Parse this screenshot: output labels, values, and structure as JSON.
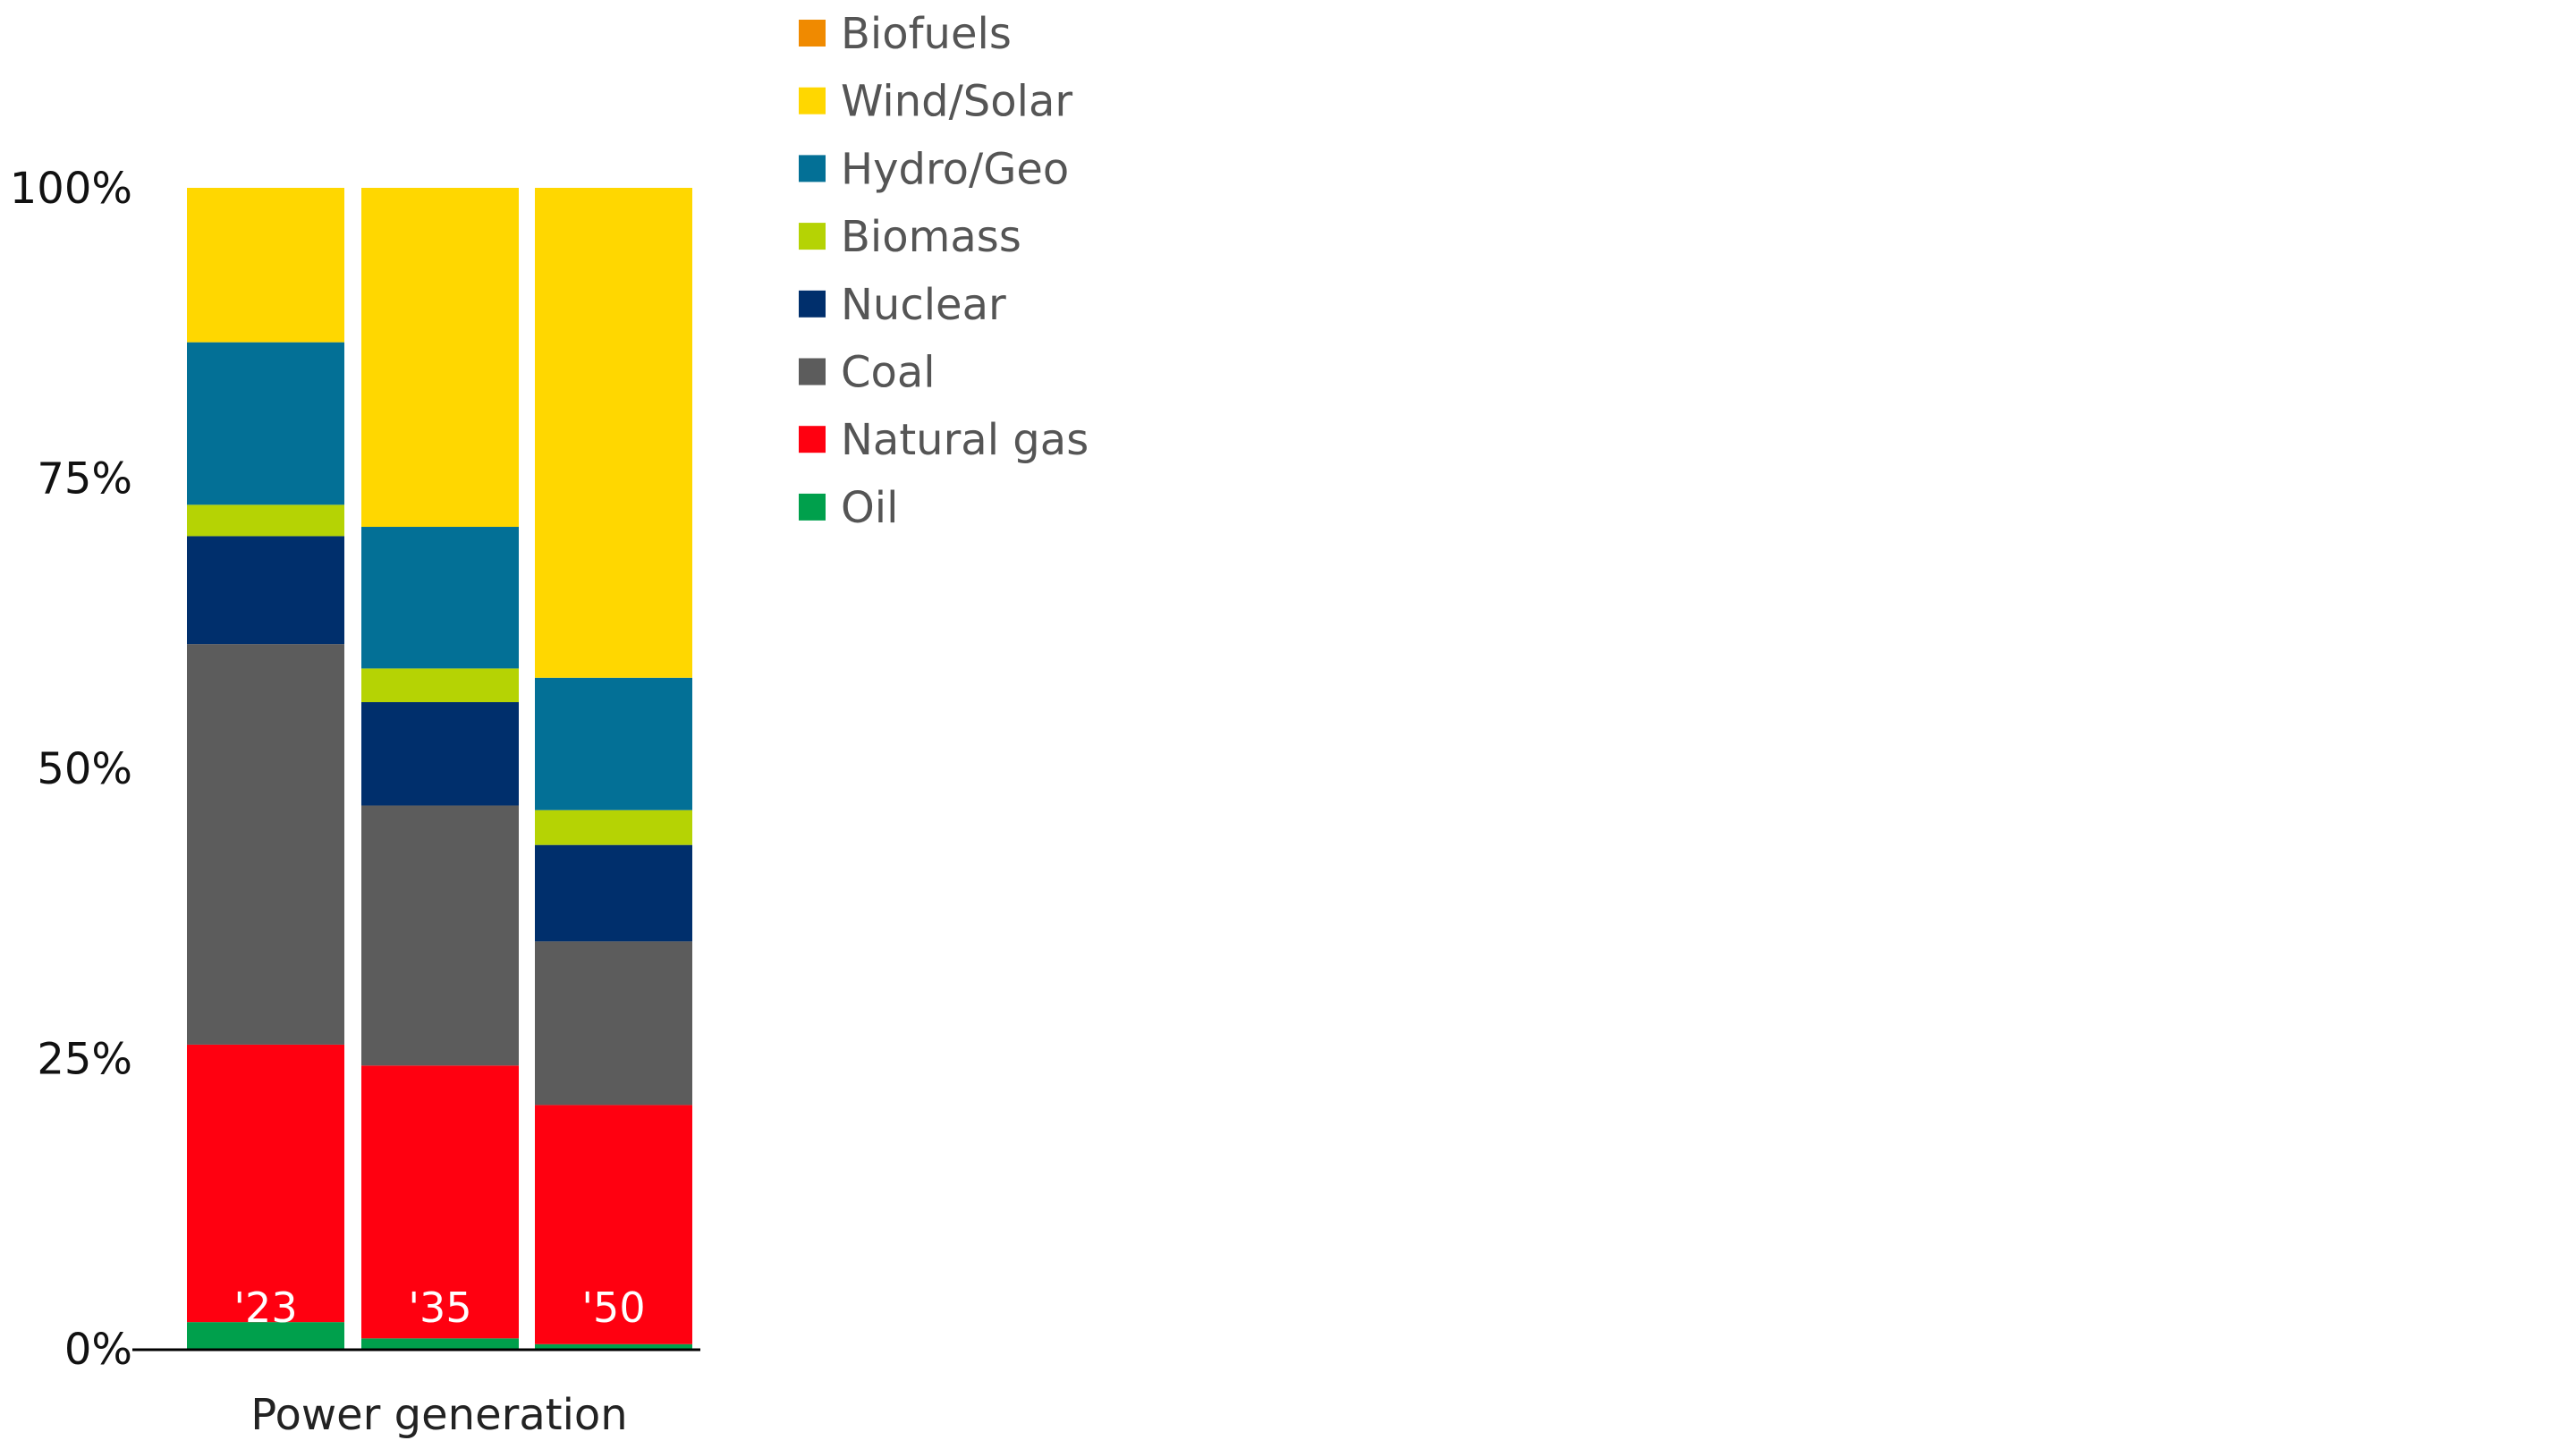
{
  "chart_data": {
    "type": "bar",
    "stacked": true,
    "normalized": true,
    "xlabel": "Power generation",
    "categories": [
      "'23",
      "'35",
      "'50"
    ],
    "yticks": [
      "0%",
      "25%",
      "50%",
      "75%",
      "100%"
    ],
    "ylim": [
      0,
      100
    ],
    "grid": false,
    "legend_placement": "top-right",
    "series": [
      {
        "name": "Oil",
        "color": "#00a04c",
        "values": [
          2.3,
          0.9,
          0.4
        ]
      },
      {
        "name": "Natural gas",
        "color": "#ff0010",
        "values": [
          23.9,
          23.5,
          20.6
        ]
      },
      {
        "name": "Coal",
        "color": "#5c5c5c",
        "values": [
          34.5,
          22.4,
          14.1
        ]
      },
      {
        "name": "Nuclear",
        "color": "#002f6c",
        "values": [
          9.3,
          8.9,
          8.3
        ]
      },
      {
        "name": "Biomass",
        "color": "#b5d304",
        "values": [
          2.7,
          2.9,
          3.0
        ]
      },
      {
        "name": "Hydro/Geo",
        "color": "#037096",
        "values": [
          14.0,
          12.2,
          11.4
        ]
      },
      {
        "name": "Wind/Solar",
        "color": "#ffd700",
        "values": [
          13.3,
          29.2,
          42.2
        ]
      },
      {
        "name": "Biofuels",
        "color": "#f08a00",
        "values": [
          0,
          0,
          0
        ]
      }
    ]
  }
}
